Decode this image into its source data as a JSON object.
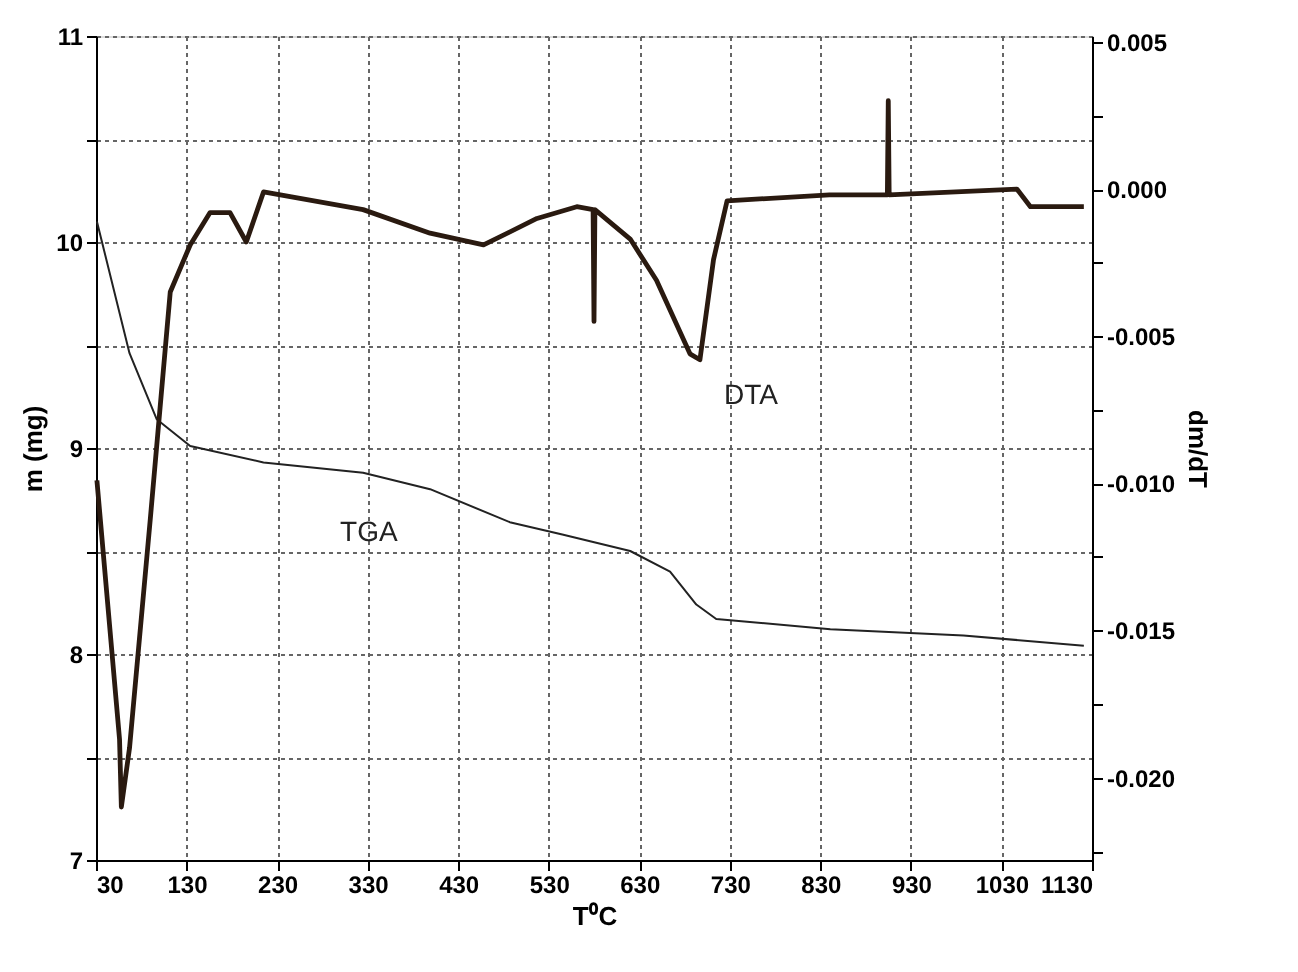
{
  "chart_data": {
    "type": "line",
    "xlabel": "T⁰C",
    "ylabel": "m (mg)",
    "y2label": "dm/dT",
    "xlim": [
      30,
      1130
    ],
    "xticks": [
      30,
      130,
      230,
      330,
      430,
      530,
      630,
      730,
      830,
      930,
      1030,
      1130
    ],
    "ylim": [
      7,
      11
    ],
    "yticks": [
      7,
      {
        "value": 7.5,
        "label": null
      },
      8,
      {
        "value": 8.5,
        "label": null
      },
      9,
      {
        "value": 9.5,
        "label": null
      },
      10,
      {
        "value": 10.5,
        "label": null
      },
      11
    ],
    "y2lim": [
      -0.0228,
      0.0052
    ],
    "y2ticks": [
      {
        "value": -0.0225,
        "label": null
      },
      {
        "value": -0.02,
        "label": "-0.020"
      },
      {
        "value": -0.0175,
        "label": null
      },
      {
        "value": -0.015,
        "label": "-0.015"
      },
      {
        "value": -0.0125,
        "label": null
      },
      {
        "value": -0.01,
        "label": "-0.010"
      },
      {
        "value": -0.0075,
        "label": null
      },
      -0.005,
      {
        "value": -0.0025,
        "label": null
      },
      {
        "value": 0,
        "label": "0.000"
      },
      {
        "value": 0.0025,
        "label": null
      },
      0.005
    ],
    "grid": true,
    "marker": "none",
    "series": [
      {
        "name": "TGA",
        "color": "#222222",
        "x": [
          31,
          67,
          97,
          134,
          215,
          325,
          399,
          487,
          545,
          620,
          664,
          693,
          715,
          841,
          988,
          1121
        ],
        "values": [
          10.1,
          9.46,
          9.14,
          9.01,
          8.93,
          8.88,
          8.8,
          8.64,
          8.58,
          8.5,
          8.4,
          8.24,
          8.17,
          8.12,
          8.09,
          8.04
        ]
      },
      {
        "name": "DTA",
        "color": "#2a1a10",
        "axis": "y2",
        "x": [
          31,
          56,
          58,
          67,
          90,
          112,
          134,
          156,
          178,
          196,
          215,
          325,
          399,
          458,
          517,
          561,
          579,
          580,
          581,
          620,
          649,
          686,
          697,
          712,
          727,
          840,
          904,
          905,
          906,
          1047,
          1062,
          1121
        ],
        "values": [
          -0.0099,
          -0.0187,
          -0.021,
          -0.019,
          -0.0112,
          -0.0035,
          -0.0019,
          -0.0008,
          -0.0008,
          -0.0018,
          -0.0001,
          -0.0007,
          -0.0015,
          -0.0019,
          -0.001,
          -0.0006,
          -0.0007,
          -0.0045,
          -0.0007,
          -0.0017,
          -0.0031,
          -0.0056,
          -0.0058,
          -0.0024,
          -0.0004,
          -0.0002,
          -0.0002,
          0.003,
          -0.0002,
          0.0,
          -0.0006,
          -0.0006
        ]
      }
    ]
  }
}
